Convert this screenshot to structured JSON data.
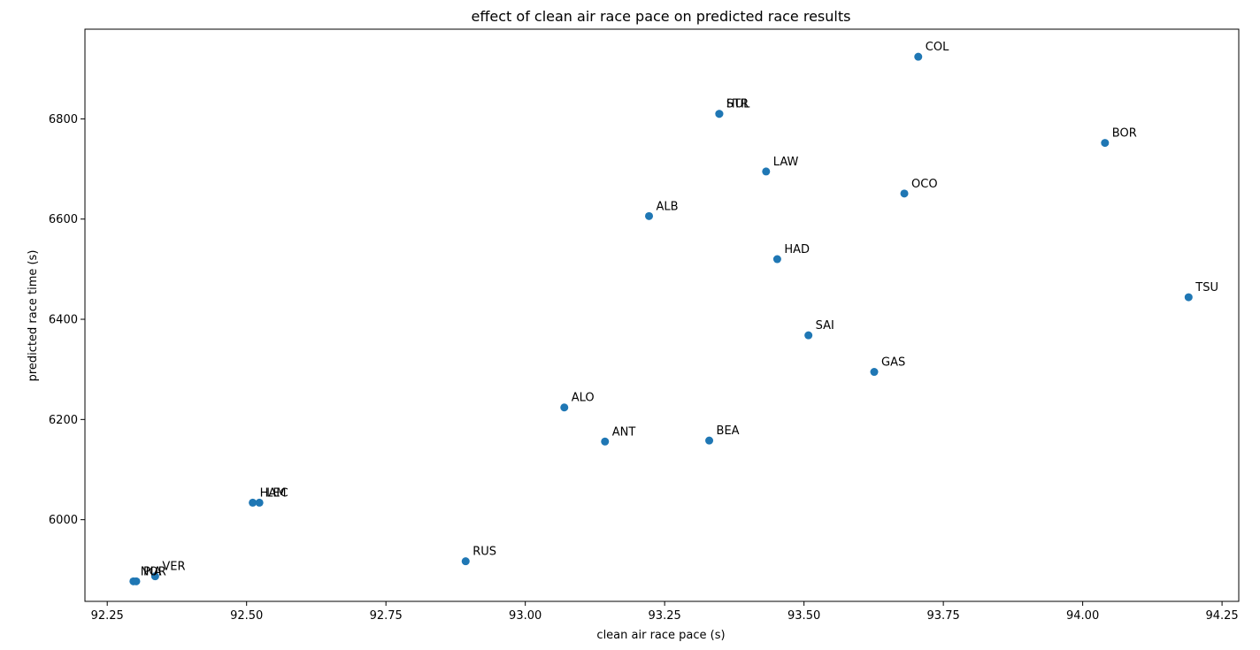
{
  "chart_data": {
    "type": "scatter",
    "title": "effect of clean air race pace on predicted race results",
    "xlabel": "clean air race pace (s)",
    "ylabel": "predicted race time (s)",
    "xlim": [
      92.21,
      94.28
    ],
    "ylim": [
      5837,
      6979
    ],
    "xticks": [
      "92.25",
      "92.50",
      "92.75",
      "93.00",
      "93.25",
      "93.50",
      "93.75",
      "94.00",
      "94.25"
    ],
    "yticks": [
      "6000",
      "6200",
      "6400",
      "6600",
      "6800"
    ],
    "marker_color": "#1f77b4",
    "points": [
      {
        "label": "COL",
        "x": 93.705,
        "y": 6924
      },
      {
        "label": "HUL",
        "x": 93.348,
        "y": 6810
      },
      {
        "label": "STR",
        "x": 93.348,
        "y": 6810
      },
      {
        "label": "BOR",
        "x": 94.04,
        "y": 6752
      },
      {
        "label": "LAW",
        "x": 93.432,
        "y": 6695
      },
      {
        "label": "OCO",
        "x": 93.68,
        "y": 6651
      },
      {
        "label": "ALB",
        "x": 93.222,
        "y": 6606
      },
      {
        "label": "HAD",
        "x": 93.452,
        "y": 6520
      },
      {
        "label": "TSU",
        "x": 94.19,
        "y": 6444
      },
      {
        "label": "SAI",
        "x": 93.508,
        "y": 6368
      },
      {
        "label": "GAS",
        "x": 93.626,
        "y": 6295
      },
      {
        "label": "ALO",
        "x": 93.07,
        "y": 6224
      },
      {
        "label": "ANT",
        "x": 93.143,
        "y": 6156
      },
      {
        "label": "BEA",
        "x": 93.33,
        "y": 6158
      },
      {
        "label": "HAM",
        "x": 92.511,
        "y": 6034
      },
      {
        "label": "LEC",
        "x": 92.523,
        "y": 6034
      },
      {
        "label": "RUS",
        "x": 92.893,
        "y": 5917
      },
      {
        "label": "VER",
        "x": 92.336,
        "y": 5887
      },
      {
        "label": "NOR",
        "x": 92.297,
        "y": 5877
      },
      {
        "label": "PIA",
        "x": 92.302,
        "y": 5877
      }
    ]
  }
}
